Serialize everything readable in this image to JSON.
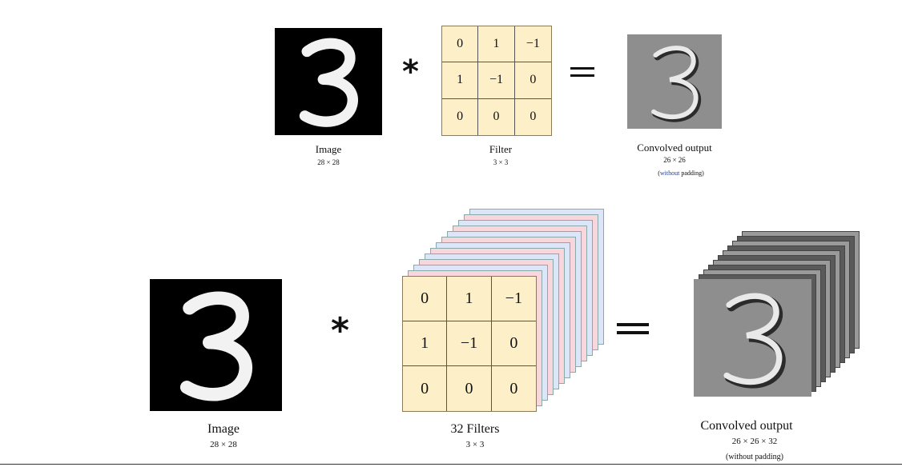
{
  "top": {
    "operator": "*",
    "equals": "=",
    "image_label": "Image",
    "image_size": "28 × 28",
    "filter_label": "Filter",
    "filter_size": "3 × 3",
    "output_label": "Convolved output",
    "output_size": "26 × 26",
    "output_note_pre": "(",
    "output_note_word": "without",
    "output_note_post": " padding)",
    "filter_values": [
      [
        "0",
        "1",
        "−1"
      ],
      [
        "1",
        "−1",
        "0"
      ],
      [
        "0",
        "0",
        "0"
      ]
    ]
  },
  "bottom": {
    "operator": "*",
    "equals": "=",
    "image_label": "Image",
    "image_size": "28 × 28",
    "filter_label": "32 Filters",
    "filter_size": "3 × 3",
    "output_label": "Convolved output",
    "output_size": "26 × 26 × 32",
    "output_note": "(without padding)",
    "filter_values": [
      [
        "0",
        "1",
        "−1"
      ],
      [
        "1",
        "−1",
        "0"
      ],
      [
        "0",
        "0",
        "0"
      ]
    ]
  },
  "colors": {
    "filter_fill": "#fdf0c8",
    "stack_pink": "#f8d6dc",
    "stack_blue": "#dde6f8",
    "note_accent": "#1f3fa8"
  }
}
